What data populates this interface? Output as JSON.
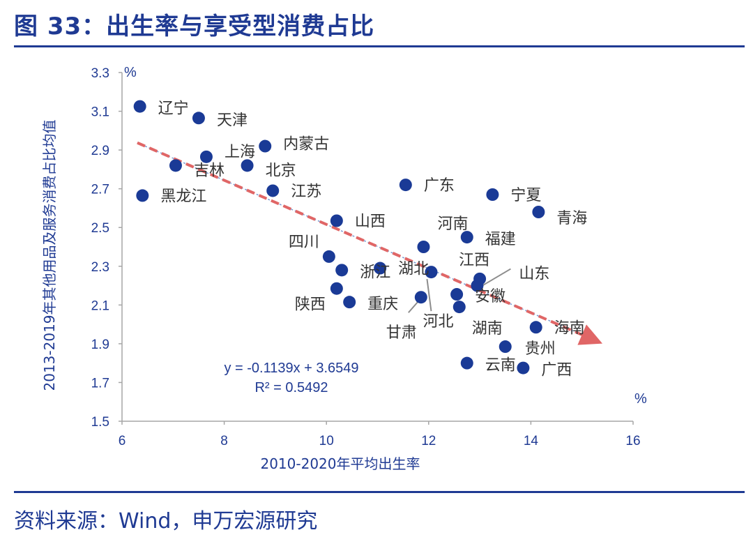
{
  "page": {
    "title": "图 33：出生率与享受型消费占比",
    "source": "资料来源：Wind，申万宏源研究"
  },
  "chart_data": {
    "type": "scatter",
    "xlabel": "2010-2020年平均出生率",
    "ylabel": "2013-2019年其他用品及服务消费占比均值",
    "x_unit": "%",
    "y_unit": "%",
    "xlim": [
      6,
      16
    ],
    "ylim": [
      1.5,
      3.3
    ],
    "x_ticks": [
      6,
      8,
      10,
      12,
      14,
      16
    ],
    "y_ticks": [
      1.5,
      1.7,
      1.9,
      2.1,
      2.3,
      2.5,
      2.7,
      2.9,
      3.1,
      3.3
    ],
    "grid": false,
    "points": [
      {
        "label": "辽宁",
        "x": 6.35,
        "y": 3.125
      },
      {
        "label": "天津",
        "x": 7.5,
        "y": 3.065
      },
      {
        "label": "内蒙古",
        "x": 8.8,
        "y": 2.92
      },
      {
        "label": "上海",
        "x": 7.65,
        "y": 2.865
      },
      {
        "label": "吉林",
        "x": 7.05,
        "y": 2.82
      },
      {
        "label": "北京",
        "x": 8.45,
        "y": 2.82
      },
      {
        "label": "黑龙江",
        "x": 6.4,
        "y": 2.665
      },
      {
        "label": "江苏",
        "x": 8.95,
        "y": 2.69
      },
      {
        "label": "广东",
        "x": 11.55,
        "y": 2.72
      },
      {
        "label": "宁夏",
        "x": 13.25,
        "y": 2.67
      },
      {
        "label": "青海",
        "x": 14.15,
        "y": 2.58
      },
      {
        "label": "山西",
        "x": 10.2,
        "y": 2.535
      },
      {
        "label": "河南",
        "x": 11.9,
        "y": 2.4
      },
      {
        "label": "福建",
        "x": 12.75,
        "y": 2.45
      },
      {
        "label": "四川",
        "x": 10.05,
        "y": 2.35
      },
      {
        "label": "浙江",
        "x": 10.3,
        "y": 2.28
      },
      {
        "label": "湖北",
        "x": 11.05,
        "y": 2.29
      },
      {
        "label": "河北",
        "x": 12.05,
        "y": 2.27
      },
      {
        "label": "江西",
        "x": 13.0,
        "y": 2.235
      },
      {
        "label": "山东",
        "x": 12.95,
        "y": 2.2
      },
      {
        "label": "陕西",
        "x": 10.2,
        "y": 2.185
      },
      {
        "label": "安徽",
        "x": 12.55,
        "y": 2.155
      },
      {
        "label": "重庆",
        "x": 10.45,
        "y": 2.115
      },
      {
        "label": "甘肃",
        "x": 11.85,
        "y": 2.14
      },
      {
        "label": "湖南",
        "x": 12.6,
        "y": 2.09
      },
      {
        "label": "海南",
        "x": 14.1,
        "y": 1.985
      },
      {
        "label": "贵州",
        "x": 13.5,
        "y": 1.885
      },
      {
        "label": "云南",
        "x": 12.75,
        "y": 1.8
      },
      {
        "label": "广西",
        "x": 13.85,
        "y": 1.775
      }
    ],
    "trendline": {
      "equation": "y = -0.1139x + 3.6549",
      "r_squared": "R² = 0.5492",
      "slope": -0.1139,
      "intercept": 3.6549,
      "x_start": 6.3,
      "x_end": 15.3,
      "color": "#e06666"
    },
    "point_color": "#1a3a96"
  }
}
